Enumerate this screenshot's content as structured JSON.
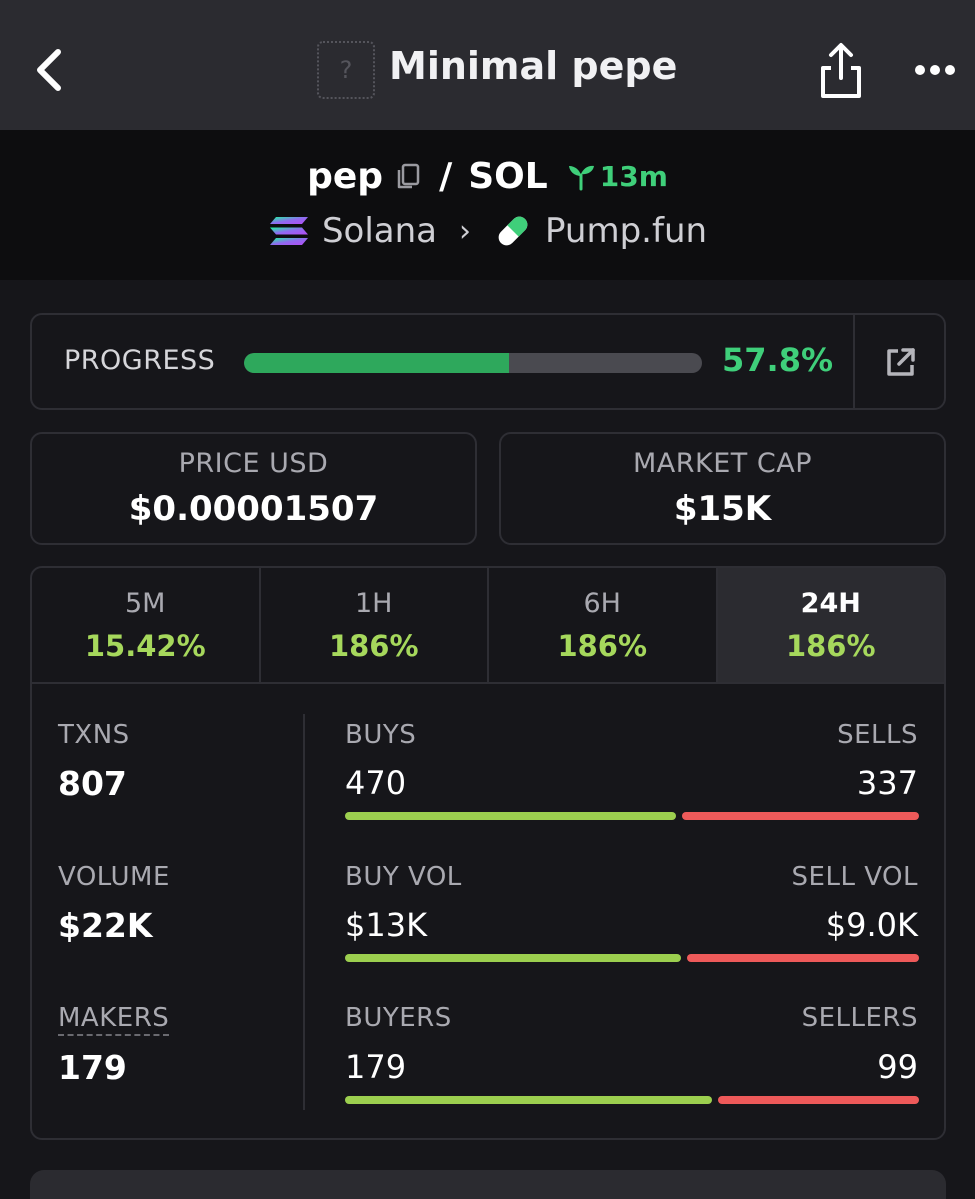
{
  "header": {
    "title": "Minimal pepe",
    "token_image_placeholder": "?"
  },
  "pair": {
    "base": "pep",
    "separator": "/",
    "quote": "SOL",
    "age": "13m",
    "chain": "Solana",
    "dex": "Pump.fun"
  },
  "progress": {
    "label": "PROGRESS",
    "value": "57.8%",
    "fraction": 0.578
  },
  "price_usd": {
    "label": "PRICE USD",
    "value": "$0.00001507"
  },
  "market_cap": {
    "label": "MARKET CAP",
    "value": "$15K"
  },
  "timeframes": [
    {
      "label": "5M",
      "change": "15.42%"
    },
    {
      "label": "1H",
      "change": "186%"
    },
    {
      "label": "6H",
      "change": "186%"
    },
    {
      "label": "24H",
      "change": "186%"
    }
  ],
  "active_timeframe": "24H",
  "stats": {
    "txns": {
      "label": "TXNS",
      "value": "807"
    },
    "volume": {
      "label": "VOLUME",
      "value": "$22K"
    },
    "makers": {
      "label": "MAKERS",
      "value": "179"
    },
    "buys": {
      "label": "BUYS",
      "value": "470",
      "share": 0.582
    },
    "sells": {
      "label": "SELLS",
      "value": "337"
    },
    "buy_vol": {
      "label": "BUY VOL",
      "value": "$13K",
      "share": 0.59
    },
    "sell_vol": {
      "label": "SELL VOL",
      "value": "$9.0K"
    },
    "buyers": {
      "label": "BUYERS",
      "value": "179",
      "share": 0.644
    },
    "sellers": {
      "label": "SELLERS",
      "value": "99"
    }
  },
  "colors": {
    "positive": "#3fcf7a",
    "change": "#a6d85c",
    "buy_bar": "#9ccf4f",
    "sell_bar": "#ee5a5a"
  }
}
